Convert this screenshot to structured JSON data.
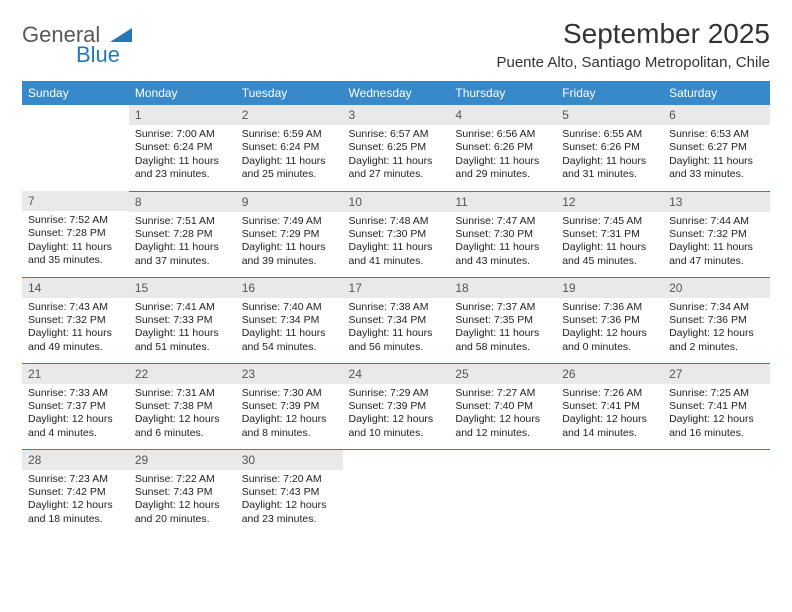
{
  "logo": {
    "general": "General",
    "blue": "Blue",
    "triangle_color": "#2478b8"
  },
  "title": "September 2025",
  "location": "Puente Alto, Santiago Metropolitan, Chile",
  "colors": {
    "header_bg": "#3789c9",
    "header_fg": "#ffffff",
    "daynum_bg": "#e9e9e9",
    "daynum_fg": "#555555",
    "rule": "#3b7fb5",
    "logo_gray": "#595959",
    "logo_blue": "#2478b8"
  },
  "weekdays": [
    "Sunday",
    "Monday",
    "Tuesday",
    "Wednesday",
    "Thursday",
    "Friday",
    "Saturday"
  ],
  "weeks": [
    [
      {
        "empty": true
      },
      {
        "n": "1",
        "sr": "7:00 AM",
        "ss": "6:24 PM",
        "dl": "11 hours and 23 minutes."
      },
      {
        "n": "2",
        "sr": "6:59 AM",
        "ss": "6:24 PM",
        "dl": "11 hours and 25 minutes."
      },
      {
        "n": "3",
        "sr": "6:57 AM",
        "ss": "6:25 PM",
        "dl": "11 hours and 27 minutes."
      },
      {
        "n": "4",
        "sr": "6:56 AM",
        "ss": "6:26 PM",
        "dl": "11 hours and 29 minutes."
      },
      {
        "n": "5",
        "sr": "6:55 AM",
        "ss": "6:26 PM",
        "dl": "11 hours and 31 minutes."
      },
      {
        "n": "6",
        "sr": "6:53 AM",
        "ss": "6:27 PM",
        "dl": "11 hours and 33 minutes."
      }
    ],
    [
      {
        "n": "7",
        "sr": "7:52 AM",
        "ss": "7:28 PM",
        "dl": "11 hours and 35 minutes."
      },
      {
        "n": "8",
        "sr": "7:51 AM",
        "ss": "7:28 PM",
        "dl": "11 hours and 37 minutes."
      },
      {
        "n": "9",
        "sr": "7:49 AM",
        "ss": "7:29 PM",
        "dl": "11 hours and 39 minutes."
      },
      {
        "n": "10",
        "sr": "7:48 AM",
        "ss": "7:30 PM",
        "dl": "11 hours and 41 minutes."
      },
      {
        "n": "11",
        "sr": "7:47 AM",
        "ss": "7:30 PM",
        "dl": "11 hours and 43 minutes."
      },
      {
        "n": "12",
        "sr": "7:45 AM",
        "ss": "7:31 PM",
        "dl": "11 hours and 45 minutes."
      },
      {
        "n": "13",
        "sr": "7:44 AM",
        "ss": "7:32 PM",
        "dl": "11 hours and 47 minutes."
      }
    ],
    [
      {
        "n": "14",
        "sr": "7:43 AM",
        "ss": "7:32 PM",
        "dl": "11 hours and 49 minutes."
      },
      {
        "n": "15",
        "sr": "7:41 AM",
        "ss": "7:33 PM",
        "dl": "11 hours and 51 minutes."
      },
      {
        "n": "16",
        "sr": "7:40 AM",
        "ss": "7:34 PM",
        "dl": "11 hours and 54 minutes."
      },
      {
        "n": "17",
        "sr": "7:38 AM",
        "ss": "7:34 PM",
        "dl": "11 hours and 56 minutes."
      },
      {
        "n": "18",
        "sr": "7:37 AM",
        "ss": "7:35 PM",
        "dl": "11 hours and 58 minutes."
      },
      {
        "n": "19",
        "sr": "7:36 AM",
        "ss": "7:36 PM",
        "dl": "12 hours and 0 minutes."
      },
      {
        "n": "20",
        "sr": "7:34 AM",
        "ss": "7:36 PM",
        "dl": "12 hours and 2 minutes."
      }
    ],
    [
      {
        "n": "21",
        "sr": "7:33 AM",
        "ss": "7:37 PM",
        "dl": "12 hours and 4 minutes."
      },
      {
        "n": "22",
        "sr": "7:31 AM",
        "ss": "7:38 PM",
        "dl": "12 hours and 6 minutes."
      },
      {
        "n": "23",
        "sr": "7:30 AM",
        "ss": "7:39 PM",
        "dl": "12 hours and 8 minutes."
      },
      {
        "n": "24",
        "sr": "7:29 AM",
        "ss": "7:39 PM",
        "dl": "12 hours and 10 minutes."
      },
      {
        "n": "25",
        "sr": "7:27 AM",
        "ss": "7:40 PM",
        "dl": "12 hours and 12 minutes."
      },
      {
        "n": "26",
        "sr": "7:26 AM",
        "ss": "7:41 PM",
        "dl": "12 hours and 14 minutes."
      },
      {
        "n": "27",
        "sr": "7:25 AM",
        "ss": "7:41 PM",
        "dl": "12 hours and 16 minutes."
      }
    ],
    [
      {
        "n": "28",
        "sr": "7:23 AM",
        "ss": "7:42 PM",
        "dl": "12 hours and 18 minutes."
      },
      {
        "n": "29",
        "sr": "7:22 AM",
        "ss": "7:43 PM",
        "dl": "12 hours and 20 minutes."
      },
      {
        "n": "30",
        "sr": "7:20 AM",
        "ss": "7:43 PM",
        "dl": "12 hours and 23 minutes."
      },
      {
        "empty": true
      },
      {
        "empty": true
      },
      {
        "empty": true
      },
      {
        "empty": true
      }
    ]
  ],
  "labels": {
    "sunrise": "Sunrise:",
    "sunset": "Sunset:",
    "daylight": "Daylight:"
  }
}
